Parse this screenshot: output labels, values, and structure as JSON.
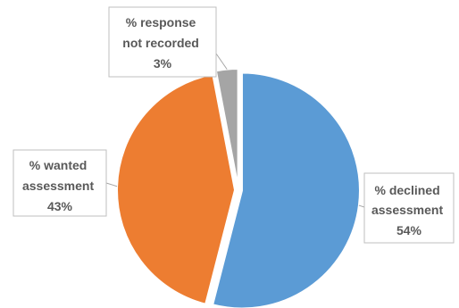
{
  "chart_data": {
    "type": "pie",
    "title": "",
    "slices": [
      {
        "label_lines": [
          "% declined",
          "assessment"
        ],
        "percent_label": "54%",
        "value": 54,
        "color": "#5B9BD5"
      },
      {
        "label_lines": [
          "% wanted",
          "assessment"
        ],
        "percent_label": "43%",
        "value": 43,
        "color": "#ED7D31"
      },
      {
        "label_lines": [
          "% response",
          "not recorded"
        ],
        "percent_label": "3%",
        "value": 3,
        "color": "#A5A5A5"
      }
    ],
    "start_angle_deg": 0,
    "direction": "clockwise",
    "exploded": true,
    "legend": "none",
    "data_labels": "callouts"
  }
}
